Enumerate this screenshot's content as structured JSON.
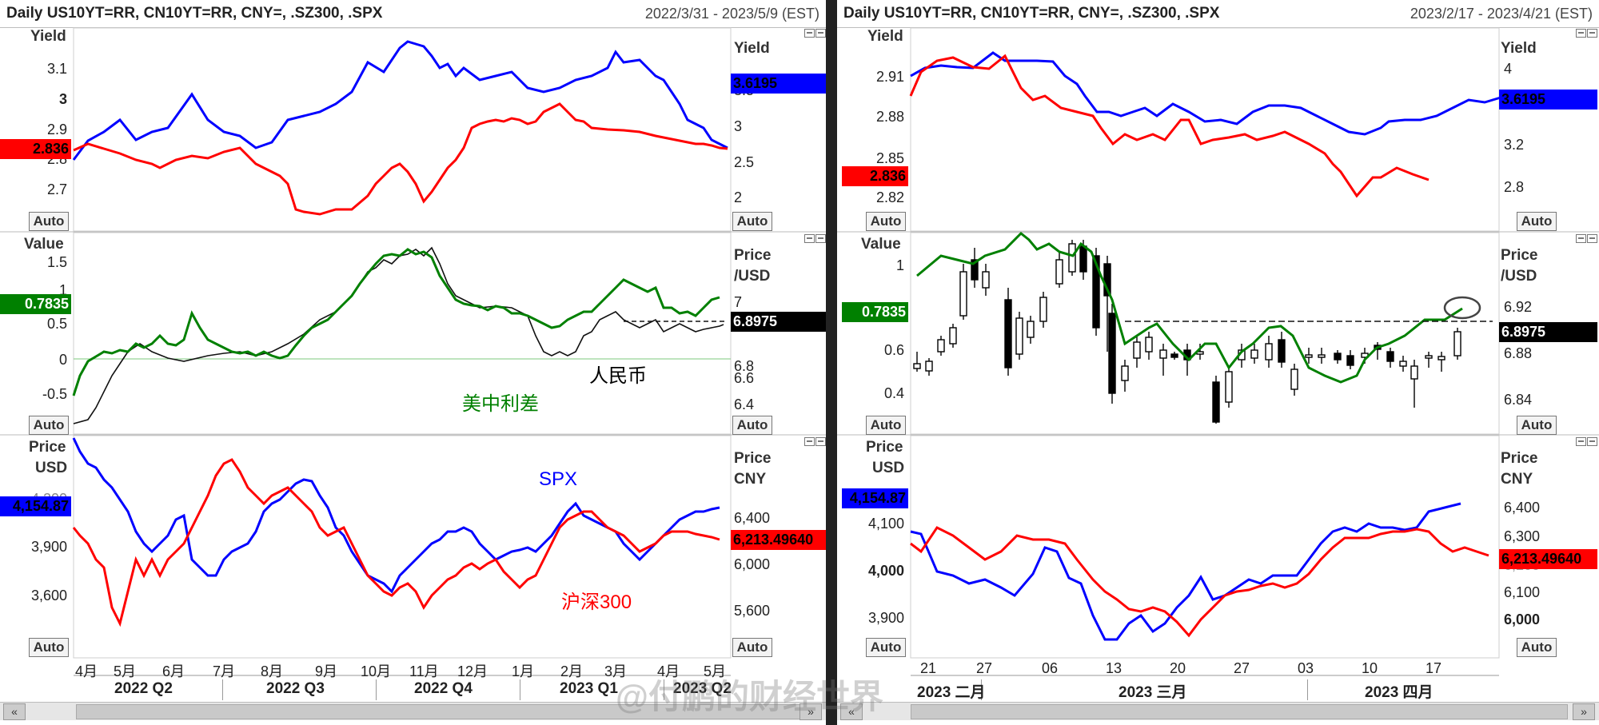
{
  "left": {
    "title": "Daily US10YT=RR, CN10YT=RR, CNY=, .SZ300, .SPX",
    "range": "2022/3/31 - 2023/5/9 (EST)",
    "pane1": {
      "label_left": "Yield",
      "label_right": "Yield",
      "ticks_left": [
        "3.1",
        "3",
        "2.9",
        "2.8",
        "2.7"
      ],
      "ticks_right": [
        "3.5",
        "3",
        "2.5",
        "2"
      ],
      "chip_left": "2.836",
      "chip_right": "3.6195",
      "auto_left": "Auto",
      "auto_right": "Auto"
    },
    "pane2": {
      "label_left": "Value",
      "label_right_1": "Price",
      "label_right_2": "/USD",
      "ticks_left": [
        "1.5",
        "1",
        "0.5",
        "0",
        "-0.5"
      ],
      "ticks_right": [
        "7",
        "6.8",
        "6.6",
        "6.4"
      ],
      "chip_left": "0.7835",
      "chip_right": "6.8975",
      "annotation_rmb": "人民币",
      "annotation_spread": "美中利差",
      "auto_left": "Auto",
      "auto_right": "Auto"
    },
    "pane3": {
      "label_left_1": "Price",
      "label_left_2": "USD",
      "label_right_1": "Price",
      "label_right_2": "CNY",
      "ticks_left": [
        "4,200",
        "3,900",
        "3,600"
      ],
      "ticks_right": [
        "6,400",
        "6,000",
        "5,600"
      ],
      "chip_left": "4,154.87",
      "chip_right": "6,213.49640",
      "annotation_spx": "SPX",
      "annotation_hs300": "沪深300",
      "auto_left": "Auto",
      "auto_right": "Auto"
    },
    "date_ticks": [
      "4月",
      "5月",
      "6月",
      "7月",
      "8月",
      "9月",
      "10月",
      "11月",
      "12月",
      "1月",
      "2月",
      "3月",
      "4月",
      "5月"
    ],
    "quarters": [
      "2022 Q2",
      "2022 Q3",
      "2022 Q4",
      "2023 Q1",
      "2023 Q2"
    ],
    "scroll_left": "«",
    "scroll_right": "»"
  },
  "right": {
    "title": "Daily US10YT=RR, CN10YT=RR, CNY=, .SZ300, .SPX",
    "range": "2023/2/17 - 2023/4/21 (EST)",
    "pane1": {
      "label_left": "Yield",
      "label_right": "Yield",
      "ticks_left": [
        "2.91",
        "2.88",
        "2.85",
        "2.82"
      ],
      "ticks_right": [
        "4",
        "3.6",
        "3.2",
        "2.8"
      ],
      "chip_left": "2.836",
      "chip_right": "3.6195",
      "auto_left": "Auto",
      "auto_right": "Auto"
    },
    "pane2": {
      "label_left": "Value",
      "label_right_1": "Price",
      "label_right_2": "/USD",
      "ticks_left": [
        "1",
        "0.6",
        "0.4"
      ],
      "ticks_right": [
        "6.92",
        "6.88",
        "6.84"
      ],
      "chip_left": "0.7835",
      "chip_right": "6.8975",
      "auto_left": "Auto",
      "auto_right": "Auto"
    },
    "pane3": {
      "label_left_1": "Price",
      "label_left_2": "USD",
      "label_right_1": "Price",
      "label_right_2": "CNY",
      "ticks_left": [
        "4,100",
        "4,000",
        "3,900"
      ],
      "ticks_right": [
        "6,400",
        "6,300",
        "6,200",
        "6,100",
        "6,000"
      ],
      "chip_left": "4,154.87",
      "chip_right": "6,213.49640",
      "auto_left": "Auto",
      "auto_right": "Auto"
    },
    "date_ticks": [
      "21",
      "27",
      "06",
      "13",
      "20",
      "27",
      "03",
      "10",
      "17"
    ],
    "months": [
      "2023 二月",
      "2023 三月",
      "2023 四月"
    ],
    "scroll_left": "«",
    "scroll_right": "»"
  },
  "watermark": "@付鹏的财经世界",
  "colors": {
    "us10y": "#0000ff",
    "cn10y": "#ff0000",
    "spread": "#008000",
    "cny": "#000000",
    "spx": "#0000ff",
    "hs300": "#ff0000"
  },
  "chart_data": [
    {
      "type": "line",
      "series": [
        {
          "values": [
            2.76,
            2.84,
            2.9,
            3.0,
            2.92,
            3.02,
            3.12,
            3.18,
            3.08,
            3.02,
            3.05,
            3.1,
            3.2,
            3.12,
            3.0,
            2.98,
            3.05
          ]
        },
        {
          "values": [
            2.8,
            2.82,
            2.76,
            2.78,
            2.74,
            2.64,
            2.66,
            2.72,
            2.66,
            2.86,
            2.9,
            2.92,
            2.88,
            2.86,
            2.84,
            2.84,
            2.83
          ]
        }
      ]
    },
    {
      "type": "line",
      "series": [
        {
          "values": [
            -0.4,
            0.0,
            0.2,
            0.6,
            0.3,
            0.0,
            0.4,
            1.0,
            1.4,
            1.6,
            0.5,
            0.2,
            0.4,
            0.8,
            0.4,
            0.7
          ]
        },
        {
          "values": [
            6.36,
            6.7,
            6.72,
            6.7,
            6.78,
            7.0,
            7.2,
            7.3,
            7.1,
            6.9,
            6.78,
            6.72,
            6.85,
            6.88,
            6.9
          ]
        }
      ]
    },
    {
      "type": "line",
      "series": [
        {
          "values": [
            4600,
            4150,
            3900,
            3800,
            4000,
            4280,
            3900,
            3600,
            3850,
            4000,
            3900,
            3950,
            4150,
            3950,
            3900,
            4150,
            4150
          ]
        },
        {
          "values": [
            6000,
            5700,
            6100,
            6600,
            6200,
            6300,
            5900,
            5600,
            6000,
            6000,
            6400,
            6300,
            6100,
            6200,
            6210
          ]
        }
      ]
    },
    {
      "type": "line",
      "series": [
        {
          "values": [
            2.905,
            2.915,
            2.91,
            2.92,
            2.91,
            2.905,
            2.885,
            2.875,
            2.88,
            2.87,
            2.88,
            2.89,
            2.88,
            2.87,
            2.875,
            2.882,
            2.885
          ]
        },
        {
          "values": [
            2.9,
            2.91,
            2.91,
            2.915,
            2.89,
            2.88,
            2.875,
            2.865,
            2.87,
            2.875,
            2.875,
            2.86,
            2.835,
            2.84,
            2.836
          ]
        }
      ]
    },
    {
      "type": "line",
      "series": [
        {
          "values": [
            0.95,
            1.05,
            1.1,
            0.95,
            1.0,
            0.7,
            0.6,
            0.55,
            0.5,
            0.45,
            0.6,
            0.7,
            0.55,
            0.45,
            0.55,
            0.7,
            0.78
          ]
        }
      ]
    },
    {
      "type": "line",
      "series": [
        {
          "values": [
            4080,
            3990,
            3980,
            4050,
            3990,
            3860,
            3900,
            3930,
            3970,
            3960,
            4090,
            4110,
            4100,
            4110,
            4150,
            4154.87
          ]
        },
        {
          "values": [
            6300,
            6340,
            6290,
            6330,
            6310,
            6120,
            6060,
            6020,
            6120,
            6200,
            6260,
            6270,
            6280,
            6210,
            6250,
            6213.4964
          ]
        }
      ]
    }
  ]
}
